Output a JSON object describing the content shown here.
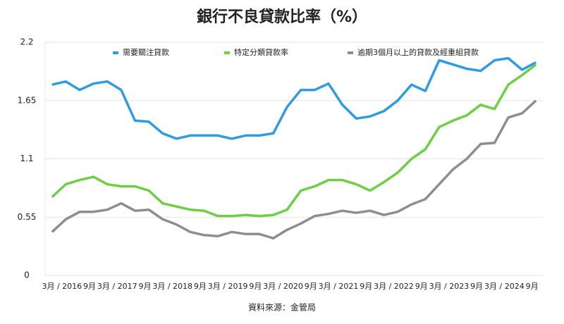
{
  "chart_data": {
    "type": "line",
    "title": "銀行不良貸款比率（%）",
    "source": "資料來源：金管局",
    "categories": [
      "3月 / 2016",
      null,
      "9月",
      null,
      "3月 / 2017",
      null,
      "9月",
      null,
      "3月 / 2018",
      null,
      "9月",
      null,
      "3月 / 2019",
      null,
      "9月",
      null,
      "3月 / 2020",
      null,
      "9月",
      null,
      "3月 / 2021",
      null,
      "9月",
      null,
      "3月 / 2022",
      null,
      "9月",
      null,
      "3月 / 2023",
      null,
      "9月",
      null,
      "3月 / 2024",
      null,
      "9月",
      null
    ],
    "series": [
      {
        "name": "需要關注貸款",
        "color": "#2f9be0",
        "values": [
          1.8,
          1.83,
          1.75,
          1.81,
          1.83,
          1.75,
          1.46,
          1.45,
          1.34,
          1.29,
          1.32,
          1.32,
          1.32,
          1.29,
          1.32,
          1.32,
          1.34,
          1.59,
          1.75,
          1.75,
          1.81,
          1.61,
          1.48,
          1.5,
          1.55,
          1.65,
          1.8,
          1.74,
          2.03,
          1.99,
          1.95,
          1.93,
          2.03,
          2.05,
          1.94,
          2.01
        ]
      },
      {
        "name": "特定分類貸款率",
        "color": "#6ccf46",
        "values": [
          0.74,
          0.86,
          0.9,
          0.93,
          0.86,
          0.84,
          0.84,
          0.8,
          0.68,
          0.65,
          0.62,
          0.61,
          0.56,
          0.56,
          0.57,
          0.56,
          0.57,
          0.62,
          0.8,
          0.84,
          0.9,
          0.9,
          0.86,
          0.8,
          0.88,
          0.97,
          1.1,
          1.19,
          1.4,
          1.46,
          1.51,
          1.61,
          1.57,
          1.8,
          1.89,
          1.99
        ]
      },
      {
        "name": "逾期3個月以上的貸款及經重組貸款",
        "color": "#8e8e8e",
        "values": [
          0.41,
          0.53,
          0.6,
          0.6,
          0.62,
          0.68,
          0.61,
          0.62,
          0.53,
          0.48,
          0.41,
          0.38,
          0.37,
          0.41,
          0.39,
          0.39,
          0.35,
          0.43,
          0.49,
          0.56,
          0.58,
          0.61,
          0.59,
          0.61,
          0.57,
          0.6,
          0.67,
          0.72,
          0.86,
          1.0,
          1.1,
          1.24,
          1.25,
          1.49,
          1.53,
          1.65
        ]
      }
    ],
    "ylim": [
      0,
      2.2
    ],
    "yticks": [
      0,
      0.55,
      1.1,
      1.65,
      2.2
    ],
    "grid": true
  }
}
